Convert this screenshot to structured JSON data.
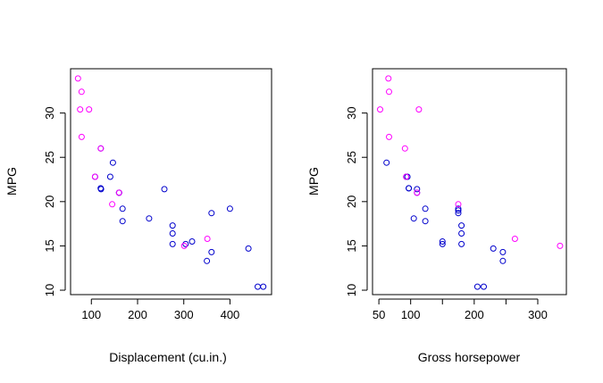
{
  "chart_data": [
    {
      "type": "scatter",
      "title": "",
      "xlabel": "Displacement (cu.in.)",
      "ylabel": "MPG",
      "xlim": [
        55,
        490
      ],
      "ylim": [
        9.5,
        35
      ],
      "xticks": [
        100,
        200,
        300,
        400
      ],
      "yticks": [
        10,
        15,
        20,
        25,
        30
      ],
      "grid": false,
      "legend": "none",
      "series": [
        {
          "color": "#0000cc",
          "points": [
            [
              160,
              21.0
            ],
            [
              160,
              21.0
            ],
            [
              108,
              22.8
            ],
            [
              258,
              21.4
            ],
            [
              360,
              18.7
            ],
            [
              225,
              18.1
            ],
            [
              360,
              14.3
            ],
            [
              146.7,
              24.4
            ],
            [
              140.8,
              22.8
            ],
            [
              167.6,
              19.2
            ],
            [
              167.6,
              17.8
            ],
            [
              275.8,
              16.4
            ],
            [
              275.8,
              17.3
            ],
            [
              275.8,
              15.2
            ],
            [
              472,
              10.4
            ],
            [
              460,
              10.4
            ],
            [
              440,
              14.7
            ],
            [
              318,
              15.5
            ],
            [
              304,
              15.2
            ],
            [
              350,
              13.3
            ],
            [
              400,
              19.2
            ],
            [
              120.3,
              26.0
            ],
            [
              120.1,
              21.5
            ],
            [
              121,
              21.4
            ]
          ]
        },
        {
          "color": "#ff00ff",
          "points": [
            [
              78.7,
              32.4
            ],
            [
              75.7,
              30.4
            ],
            [
              71.1,
              33.9
            ],
            [
              79,
              27.3
            ],
            [
              95.1,
              30.4
            ],
            [
              351,
              15.8
            ],
            [
              145,
              19.7
            ],
            [
              301,
              15.0
            ],
            [
              120.3,
              26.0
            ],
            [
              160,
              21.0
            ],
            [
              108,
              22.8
            ]
          ]
        }
      ]
    },
    {
      "type": "scatter",
      "title": "",
      "xlabel": "Gross horsepower",
      "ylabel": "MPG",
      "xlim": [
        40,
        345
      ],
      "ylim": [
        9.5,
        35
      ],
      "xticks": [
        50,
        100,
        150,
        200,
        250,
        300
      ],
      "xtick_labels": [
        "50",
        "100",
        "",
        "200",
        "",
        "300"
      ],
      "yticks": [
        10,
        15,
        20,
        25,
        30
      ],
      "grid": false,
      "legend": "none",
      "series": [
        {
          "color": "#0000cc",
          "points": [
            [
              110,
              21.0
            ],
            [
              93,
              22.8
            ],
            [
              110,
              21.4
            ],
            [
              175,
              18.7
            ],
            [
              105,
              18.1
            ],
            [
              245,
              14.3
            ],
            [
              62,
              24.4
            ],
            [
              95,
              22.8
            ],
            [
              123,
              19.2
            ],
            [
              123,
              17.8
            ],
            [
              180,
              16.4
            ],
            [
              180,
              17.3
            ],
            [
              180,
              15.2
            ],
            [
              205,
              10.4
            ],
            [
              215,
              10.4
            ],
            [
              230,
              14.7
            ],
            [
              150,
              15.5
            ],
            [
              150,
              15.2
            ],
            [
              245,
              13.3
            ],
            [
              175,
              19.2
            ],
            [
              97,
              21.5
            ],
            [
              175,
              19.0
            ],
            [
              97,
              21.5
            ]
          ]
        },
        {
          "color": "#ff00ff",
          "points": [
            [
              66,
              32.4
            ],
            [
              52,
              30.4
            ],
            [
              65,
              33.9
            ],
            [
              66,
              27.3
            ],
            [
              113,
              30.4
            ],
            [
              264,
              15.8
            ],
            [
              175,
              19.7
            ],
            [
              335,
              15.0
            ],
            [
              91,
              26.0
            ],
            [
              110,
              21.0
            ],
            [
              93,
              22.8
            ]
          ]
        }
      ]
    }
  ]
}
